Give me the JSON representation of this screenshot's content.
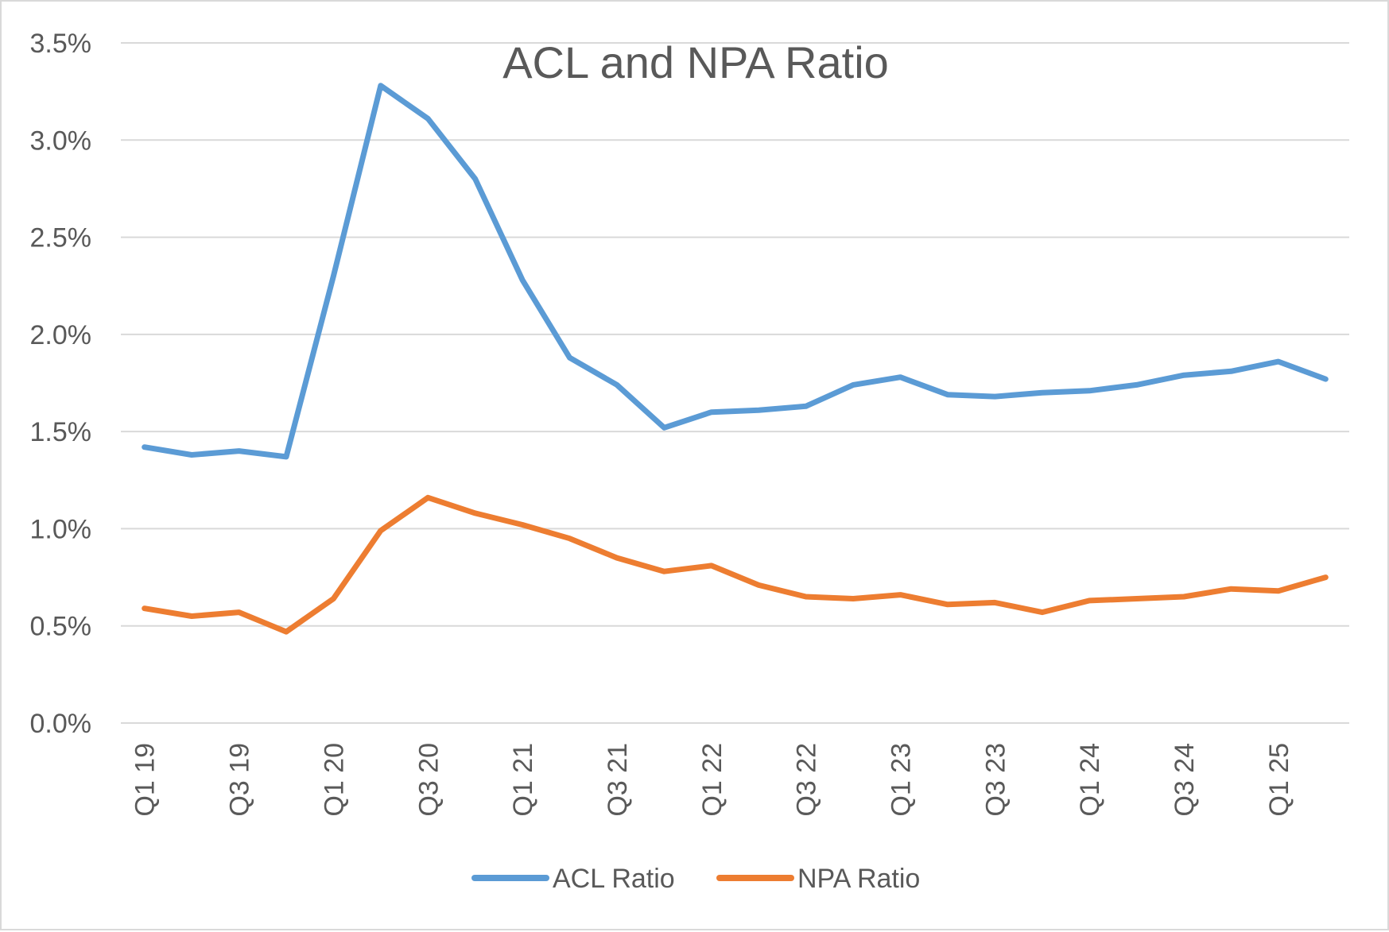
{
  "chart_data": {
    "type": "line",
    "title": "ACL and NPA Ratio",
    "xlabel": "",
    "ylabel": "",
    "ylim": [
      0,
      3.5
    ],
    "yticks": [
      "0.0%",
      "0.5%",
      "1.0%",
      "1.5%",
      "2.0%",
      "2.5%",
      "3.0%",
      "3.5%"
    ],
    "ytick_values": [
      0,
      0.5,
      1.0,
      1.5,
      2.0,
      2.5,
      3.0,
      3.5
    ],
    "categories": [
      "Q1 19",
      "Q2 19",
      "Q3 19",
      "Q4 19",
      "Q1 20",
      "Q2 20",
      "Q3 20",
      "Q4 20",
      "Q1 21",
      "Q2 21",
      "Q3 21",
      "Q4 21",
      "Q1 22",
      "Q2 22",
      "Q3 22",
      "Q4 22",
      "Q1 23",
      "Q2 23",
      "Q3 23",
      "Q4 23",
      "Q1 24",
      "Q2 24",
      "Q3 24",
      "Q4 24",
      "Q1 25",
      "Q2 25"
    ],
    "xtick_labels": [
      "Q1 19",
      "",
      "Q3 19",
      "",
      "Q1 20",
      "",
      "Q3 20",
      "",
      "Q1 21",
      "",
      "Q3 21",
      "",
      "Q1 22",
      "",
      "Q3 22",
      "",
      "Q1 23",
      "",
      "Q3 23",
      "",
      "Q1 24",
      "",
      "Q3 24",
      "",
      "Q1 25",
      ""
    ],
    "grid": true,
    "legend_position": "bottom",
    "series": [
      {
        "name": "ACL Ratio",
        "color": "#5b9bd5",
        "values": [
          1.42,
          1.38,
          1.4,
          1.37,
          2.3,
          3.28,
          3.11,
          2.8,
          2.28,
          1.88,
          1.74,
          1.52,
          1.6,
          1.61,
          1.63,
          1.74,
          1.78,
          1.69,
          1.68,
          1.7,
          1.71,
          1.74,
          1.79,
          1.81,
          1.86,
          1.77
        ]
      },
      {
        "name": "NPA Ratio",
        "color": "#ed7d31",
        "values": [
          0.59,
          0.55,
          0.57,
          0.47,
          0.64,
          0.99,
          1.16,
          1.08,
          1.02,
          0.95,
          0.85,
          0.78,
          0.81,
          0.71,
          0.65,
          0.64,
          0.66,
          0.61,
          0.62,
          0.57,
          0.63,
          0.64,
          0.65,
          0.69,
          0.68,
          0.75
        ]
      }
    ]
  }
}
